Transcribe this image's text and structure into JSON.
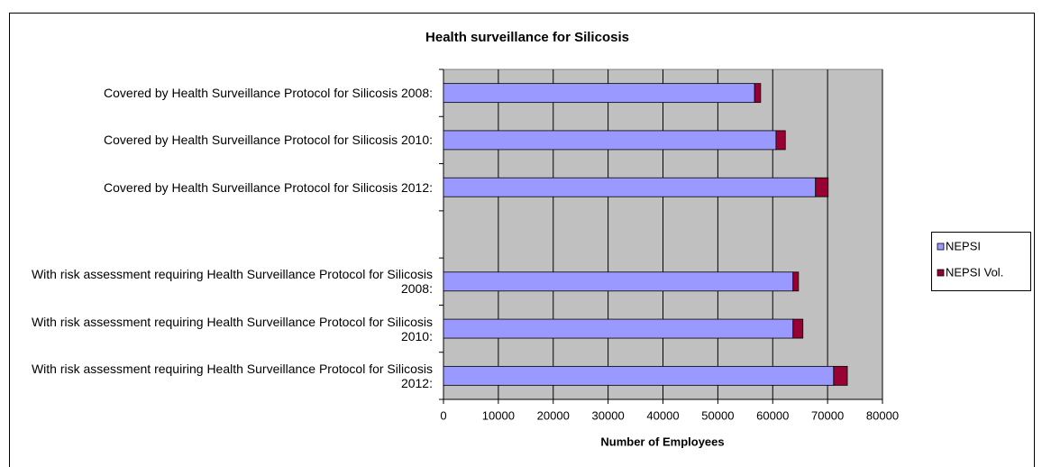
{
  "chart_data": {
    "type": "stacked_bar_horizontal",
    "title": "Health surveillance for Silicosis",
    "x_label": "Number of Employees",
    "categories": [
      "Covered by Health Surveillance Protocol for Silicosis 2008:",
      "Covered by Health Surveillance Protocol for Silicosis 2010:",
      "Covered by Health Surveillance Protocol for Silicosis 2012:",
      null,
      "With risk assessment requiring Health Surveillance Protocol for Silicosis 2008:",
      "With risk assessment requiring Health Surveillance Protocol for Silicosis 2010:",
      "With risk assessment requiring Health Surveillance Protocol for Silicosis 2012:"
    ],
    "series": [
      {
        "name": "NEPSI",
        "color": "#9999ff",
        "values": [
          56700,
          60600,
          67800,
          null,
          63700,
          63700,
          71100
        ]
      },
      {
        "name": "NEPSI Vol.",
        "color": "#990033",
        "values": [
          1100,
          1700,
          2300,
          null,
          1000,
          1800,
          2500
        ]
      }
    ],
    "xlim": [
      0,
      80000
    ],
    "xticks": [
      0,
      10000,
      20000,
      30000,
      40000,
      50000,
      60000,
      70000,
      80000
    ],
    "grid": true,
    "legend": "right"
  }
}
